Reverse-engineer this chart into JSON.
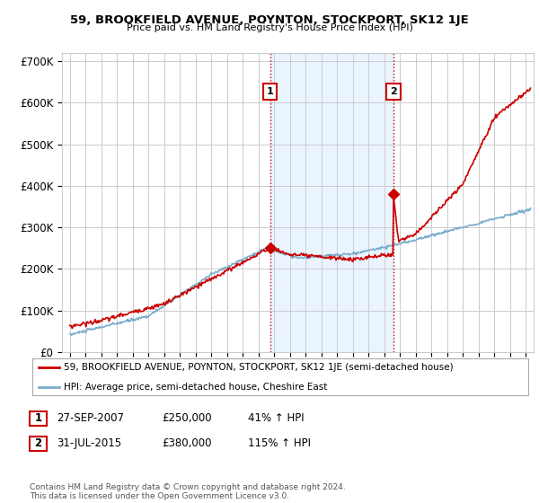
{
  "title": "59, BROOKFIELD AVENUE, POYNTON, STOCKPORT, SK12 1JE",
  "subtitle": "Price paid vs. HM Land Registry's House Price Index (HPI)",
  "ylabel_ticks": [
    "£0",
    "£100K",
    "£200K",
    "£300K",
    "£400K",
    "£500K",
    "£600K",
    "£700K"
  ],
  "ytick_vals": [
    0,
    100000,
    200000,
    300000,
    400000,
    500000,
    600000,
    700000
  ],
  "ylim": [
    0,
    720000
  ],
  "xlim_start": 1994.5,
  "xlim_end": 2024.5,
  "red_color": "#cc0000",
  "blue_color": "#7aadcc",
  "marker1_x": 2007.74,
  "marker1_y": 250000,
  "marker2_x": 2015.58,
  "marker2_y": 380000,
  "legend_label_red": "59, BROOKFIELD AVENUE, POYNTON, STOCKPORT, SK12 1JE (semi-detached house)",
  "legend_label_blue": "HPI: Average price, semi-detached house, Cheshire East",
  "table_rows": [
    [
      "1",
      "27-SEP-2007",
      "£250,000",
      "41% ↑ HPI"
    ],
    [
      "2",
      "31-JUL-2015",
      "£380,000",
      "115% ↑ HPI"
    ]
  ],
  "footer": "Contains HM Land Registry data © Crown copyright and database right 2024.\nThis data is licensed under the Open Government Licence v3.0.",
  "background_color": "#ffffff",
  "grid_color": "#cccccc",
  "shade_color": "#ddeeff"
}
